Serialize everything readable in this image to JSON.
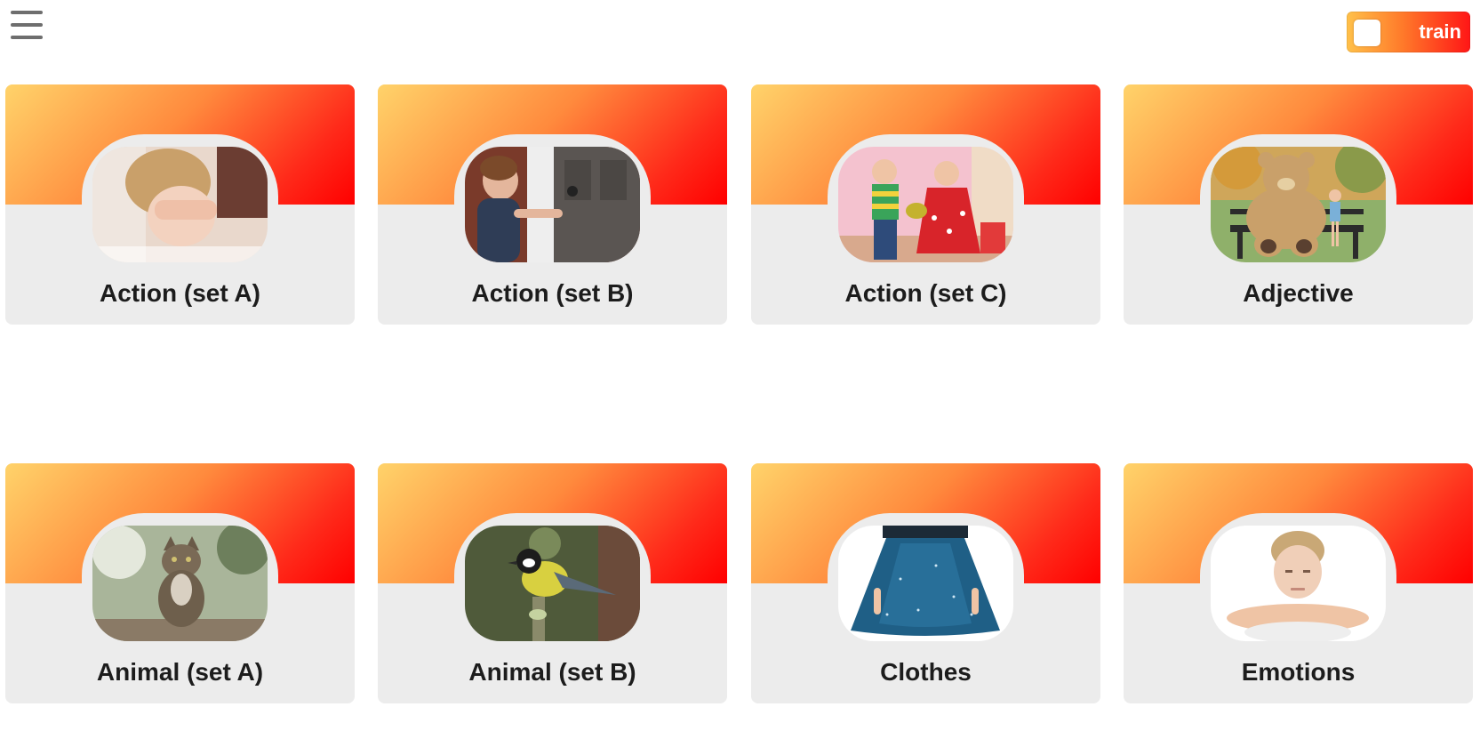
{
  "header": {
    "menu_icon": "hamburger-menu-icon",
    "train_toggle": {
      "label": "train",
      "checked": false
    }
  },
  "colors": {
    "banner_start": "#ffd36a",
    "banner_end": "#ff0000",
    "card_background": "#ececec",
    "title_text": "#1c1c1c"
  },
  "cards": [
    {
      "title": "Action (set A)",
      "image": "child-covering-eyes"
    },
    {
      "title": "Action (set B)",
      "image": "boy-opening-door"
    },
    {
      "title": "Action (set C)",
      "image": "children-playing-with-toy"
    },
    {
      "title": "Adjective",
      "image": "giant-teddy-bear-on-bench"
    },
    {
      "title": "Animal (set A)",
      "image": "tabby-cat-sitting"
    },
    {
      "title": "Animal (set B)",
      "image": "great-tit-bird-on-branch"
    },
    {
      "title": "Clothes",
      "image": "blue-sparkly-skirt"
    },
    {
      "title": "Emotions",
      "image": "sad-boy-resting-head"
    }
  ]
}
